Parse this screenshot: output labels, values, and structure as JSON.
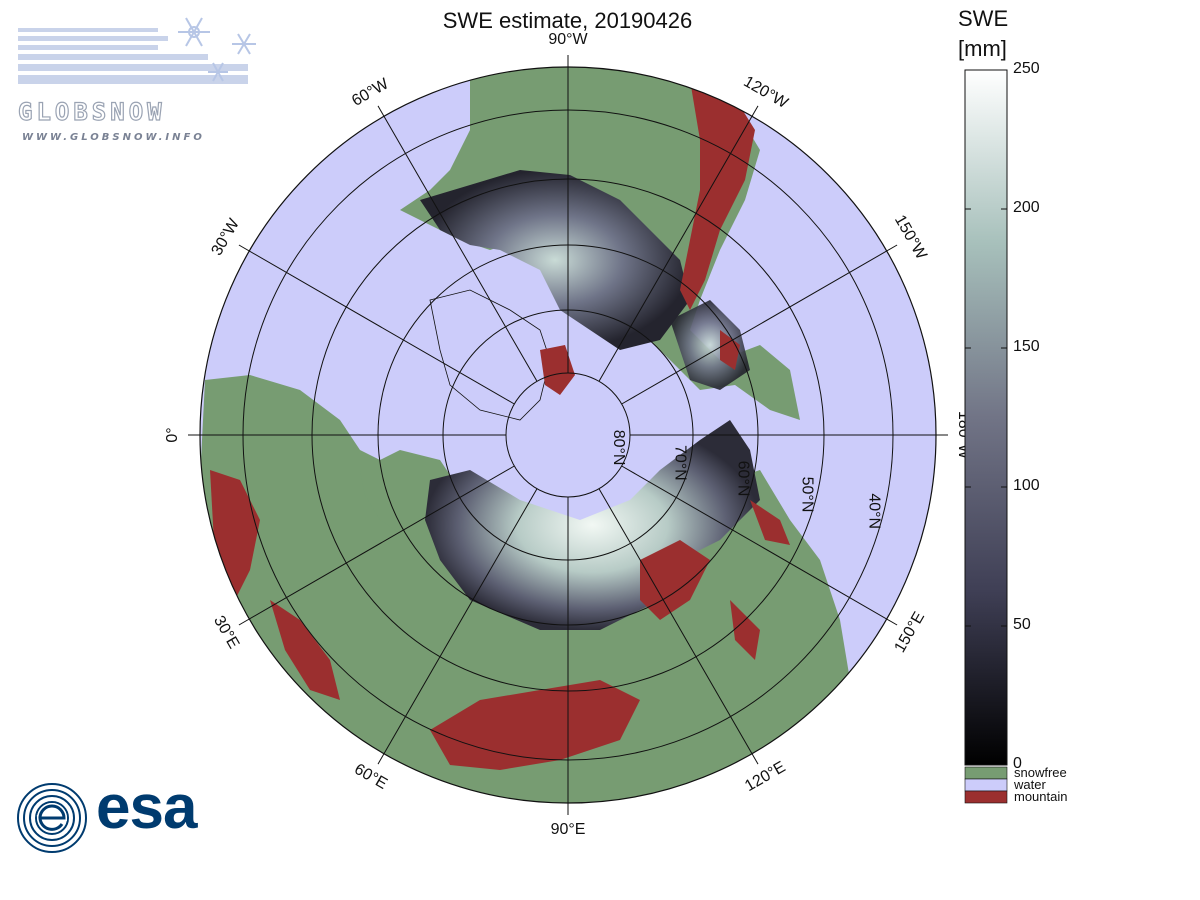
{
  "title": "SWE estimate, 20190426",
  "logos": {
    "globsnow_word": "GLOBSNOW",
    "globsnow_url": "WWW.GLOBSNOW.INFO",
    "esa_word": "esa"
  },
  "map": {
    "projection": "north-polar-stereographic",
    "longitude_labels": [
      {
        "text": "90°W",
        "lon": -90
      },
      {
        "text": "120°W",
        "lon": -120
      },
      {
        "text": "150°W",
        "lon": -150
      },
      {
        "text": "180°W",
        "lon": 180
      },
      {
        "text": "150°E",
        "lon": 150
      },
      {
        "text": "120°E",
        "lon": 120
      },
      {
        "text": "90°E",
        "lon": 90
      },
      {
        "text": "60°E",
        "lon": 60
      },
      {
        "text": "30°E",
        "lon": 30
      },
      {
        "text": "0°",
        "lon": 0
      },
      {
        "text": "30°W",
        "lon": -30
      },
      {
        "text": "60°W",
        "lon": -60
      }
    ],
    "latitude_labels": [
      "80°N",
      "70°N",
      "60°N",
      "50°N",
      "40°N"
    ],
    "colors": {
      "water": "#ccccfa",
      "snowfree": "#779c72",
      "mountain": "#9b2f2f",
      "grid": "#111111"
    }
  },
  "colorbar": {
    "title_line1": "SWE",
    "title_line2": "[mm]",
    "ticks": [
      "250",
      "200",
      "150",
      "100",
      "50",
      "0"
    ],
    "range": [
      0,
      250
    ],
    "categories": [
      {
        "label": "snowfree",
        "color": "#779c72"
      },
      {
        "label": "water",
        "color": "#ccccfa"
      },
      {
        "label": "mountain",
        "color": "#9b2f2f"
      }
    ]
  }
}
